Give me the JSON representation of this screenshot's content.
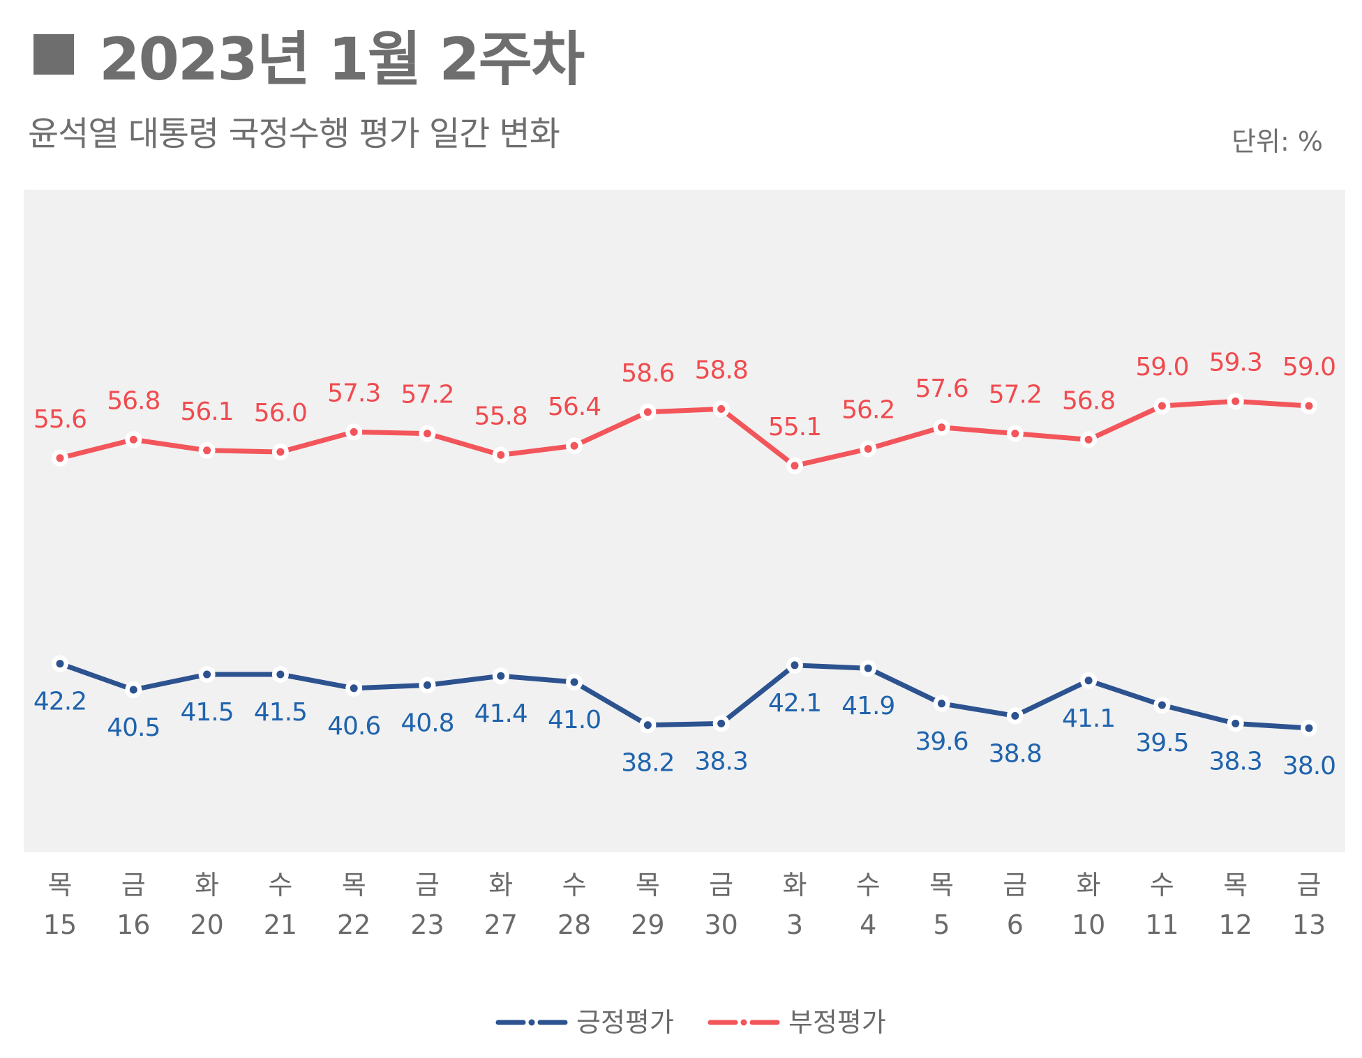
{
  "header": {
    "title": "2023년 1월 2주차",
    "subtitle": "윤석열 대통령 국정수행 평가 일간 변화",
    "unit": "단위: %"
  },
  "chart_data": {
    "type": "line",
    "title": "2023년 1월 2주차",
    "subtitle": "윤석열 대통령 국정수행 평가 일간 변화",
    "unit": "단위: %",
    "categories": [
      {
        "day": "목",
        "date": "15"
      },
      {
        "day": "금",
        "date": "16"
      },
      {
        "day": "화",
        "date": "20"
      },
      {
        "day": "수",
        "date": "21"
      },
      {
        "day": "목",
        "date": "22"
      },
      {
        "day": "금",
        "date": "23"
      },
      {
        "day": "화",
        "date": "27"
      },
      {
        "day": "수",
        "date": "28"
      },
      {
        "day": "목",
        "date": "29"
      },
      {
        "day": "금",
        "date": "30"
      },
      {
        "day": "화",
        "date": "3"
      },
      {
        "day": "수",
        "date": "4"
      },
      {
        "day": "목",
        "date": "5"
      },
      {
        "day": "금",
        "date": "6"
      },
      {
        "day": "화",
        "date": "10"
      },
      {
        "day": "수",
        "date": "11"
      },
      {
        "day": "목",
        "date": "12"
      },
      {
        "day": "금",
        "date": "13"
      }
    ],
    "series": [
      {
        "name": "긍정평가",
        "color": "#2c528f",
        "label_color": "#1f63ad",
        "label_position": "below",
        "values": [
          42.2,
          40.5,
          41.5,
          41.5,
          40.6,
          40.8,
          41.4,
          41.0,
          38.2,
          38.3,
          42.1,
          41.9,
          39.6,
          38.8,
          41.1,
          39.5,
          38.3,
          38.0
        ]
      },
      {
        "name": "부정평가",
        "color": "#f2555a",
        "label_color": "#ef4b4f",
        "label_position": "above",
        "values": [
          55.6,
          56.8,
          56.1,
          56.0,
          57.3,
          57.2,
          55.8,
          56.4,
          58.6,
          58.8,
          55.1,
          56.2,
          57.6,
          57.2,
          56.8,
          59.0,
          59.3,
          59.0
        ]
      }
    ],
    "ylim": [
      30,
      70
    ],
    "plot_background": "#f1f1f1",
    "grid": false,
    "legend": "bottom-center"
  }
}
